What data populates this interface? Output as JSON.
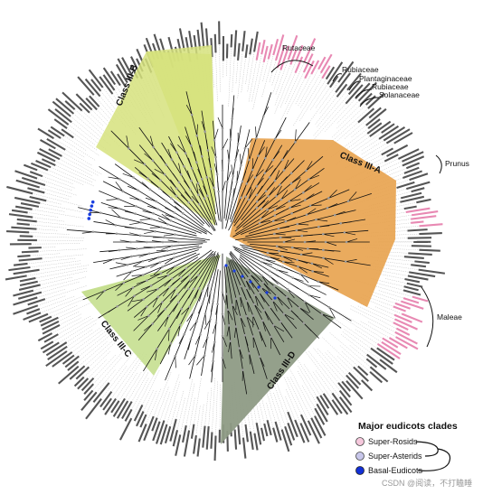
{
  "classes": [
    {
      "label": "Class III-B",
      "color": "#d6e27c"
    },
    {
      "label": "Class III-A",
      "color": "#e8a24d"
    },
    {
      "label": "Class III-C",
      "color": "#c5df8f"
    },
    {
      "label": "Class III-D",
      "color": "#8e9b85"
    }
  ],
  "family_labels": {
    "rutaceae": "Rutaceae",
    "rubiaceae_1": "Rubiaceae",
    "plantaginaceae": "Plantaginaceae",
    "rubiaceae_2": "Rubiaceae",
    "solanaceae": "Solanaceae",
    "prunus": "Prunus",
    "maleae": "Maleae"
  },
  "legend": {
    "title": "Major eudicots clades",
    "items": [
      {
        "label": "Super-Rosids",
        "color": "#f5c8dc"
      },
      {
        "label": "Super-Asterids",
        "color": "#c7c6ea"
      },
      {
        "label": "Basal-Eudicots",
        "color": "#1230d6"
      }
    ]
  },
  "watermark": "CSDN @阅读，不打瞌睡",
  "colors": {
    "rosids_highlight": "#e889b3",
    "basal_marker": "#1a3ee0",
    "branch": "#111111",
    "leaf_line": "#bdbdbd"
  }
}
